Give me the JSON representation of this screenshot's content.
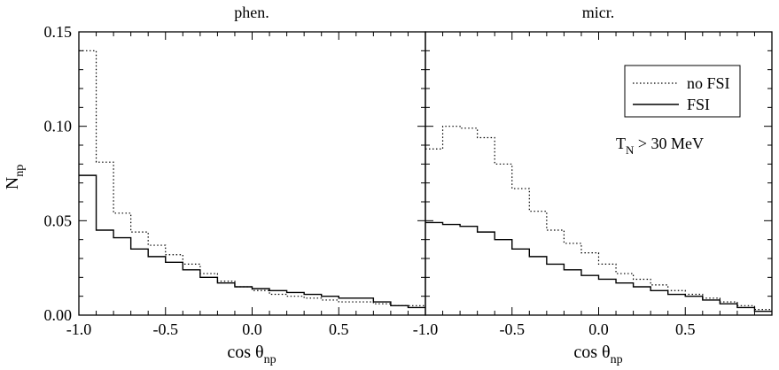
{
  "chart_data": [
    {
      "type": "histogram",
      "title": "phen.",
      "xlabel": "cos θ",
      "xlabel_sub": "np",
      "ylabel": "N",
      "ylabel_sub": "np",
      "xlim": [
        -1.0,
        1.0
      ],
      "ylim": [
        0.0,
        0.15
      ],
      "xticks": [
        -1.0,
        -0.5,
        0.0,
        0.5
      ],
      "xtick_labels": [
        "-1.0",
        "-0.5",
        "0.0",
        "0.5"
      ],
      "yticks": [
        0.0,
        0.05,
        0.1,
        0.15
      ],
      "ytick_labels": [
        "0.00",
        "0.05",
        "0.10",
        "0.15"
      ],
      "bin_edges": [
        -1.0,
        -0.9,
        -0.8,
        -0.7,
        -0.6,
        -0.5,
        -0.4,
        -0.3,
        -0.2,
        -0.1,
        0.0,
        0.1,
        0.2,
        0.3,
        0.4,
        0.5,
        0.6,
        0.7,
        0.8,
        0.9,
        1.0
      ],
      "series": [
        {
          "name": "no FSI",
          "style": "dotted",
          "values": [
            0.14,
            0.081,
            0.054,
            0.044,
            0.037,
            0.032,
            0.027,
            0.022,
            0.018,
            0.015,
            0.013,
            0.011,
            0.01,
            0.009,
            0.008,
            0.007,
            0.007,
            0.006,
            0.005,
            0.005
          ]
        },
        {
          "name": "FSI",
          "style": "solid",
          "values": [
            0.074,
            0.045,
            0.041,
            0.035,
            0.031,
            0.028,
            0.024,
            0.02,
            0.017,
            0.015,
            0.014,
            0.013,
            0.012,
            0.011,
            0.01,
            0.009,
            0.009,
            0.007,
            0.005,
            0.004
          ]
        }
      ]
    },
    {
      "type": "histogram",
      "title": "micr.",
      "xlabel": "cos θ",
      "xlabel_sub": "np",
      "xlim": [
        -1.0,
        1.0
      ],
      "ylim": [
        0.0,
        0.15
      ],
      "xticks": [
        -1.0,
        -0.5,
        0.0,
        0.5
      ],
      "xtick_labels": [
        "-1.0",
        "-0.5",
        "0.0",
        "0.5"
      ],
      "bin_edges": [
        -1.0,
        -0.9,
        -0.8,
        -0.7,
        -0.6,
        -0.5,
        -0.4,
        -0.3,
        -0.2,
        -0.1,
        0.0,
        0.1,
        0.2,
        0.3,
        0.4,
        0.5,
        0.6,
        0.7,
        0.8,
        0.9,
        1.0
      ],
      "annotation": "T",
      "annotation_sub": "N",
      "annotation_rest": " > 30 MeV",
      "legend": [
        {
          "name": "no FSI",
          "style": "dotted"
        },
        {
          "name": "FSI",
          "style": "solid"
        }
      ],
      "series": [
        {
          "name": "no FSI",
          "style": "dotted",
          "values": [
            0.088,
            0.1,
            0.099,
            0.094,
            0.08,
            0.067,
            0.055,
            0.045,
            0.038,
            0.033,
            0.027,
            0.022,
            0.019,
            0.016,
            0.013,
            0.011,
            0.009,
            0.007,
            0.005,
            0.003
          ]
        },
        {
          "name": "FSI",
          "style": "solid",
          "values": [
            0.049,
            0.048,
            0.047,
            0.044,
            0.04,
            0.035,
            0.031,
            0.027,
            0.024,
            0.021,
            0.019,
            0.017,
            0.015,
            0.013,
            0.011,
            0.01,
            0.008,
            0.006,
            0.004,
            0.002
          ]
        }
      ]
    }
  ]
}
